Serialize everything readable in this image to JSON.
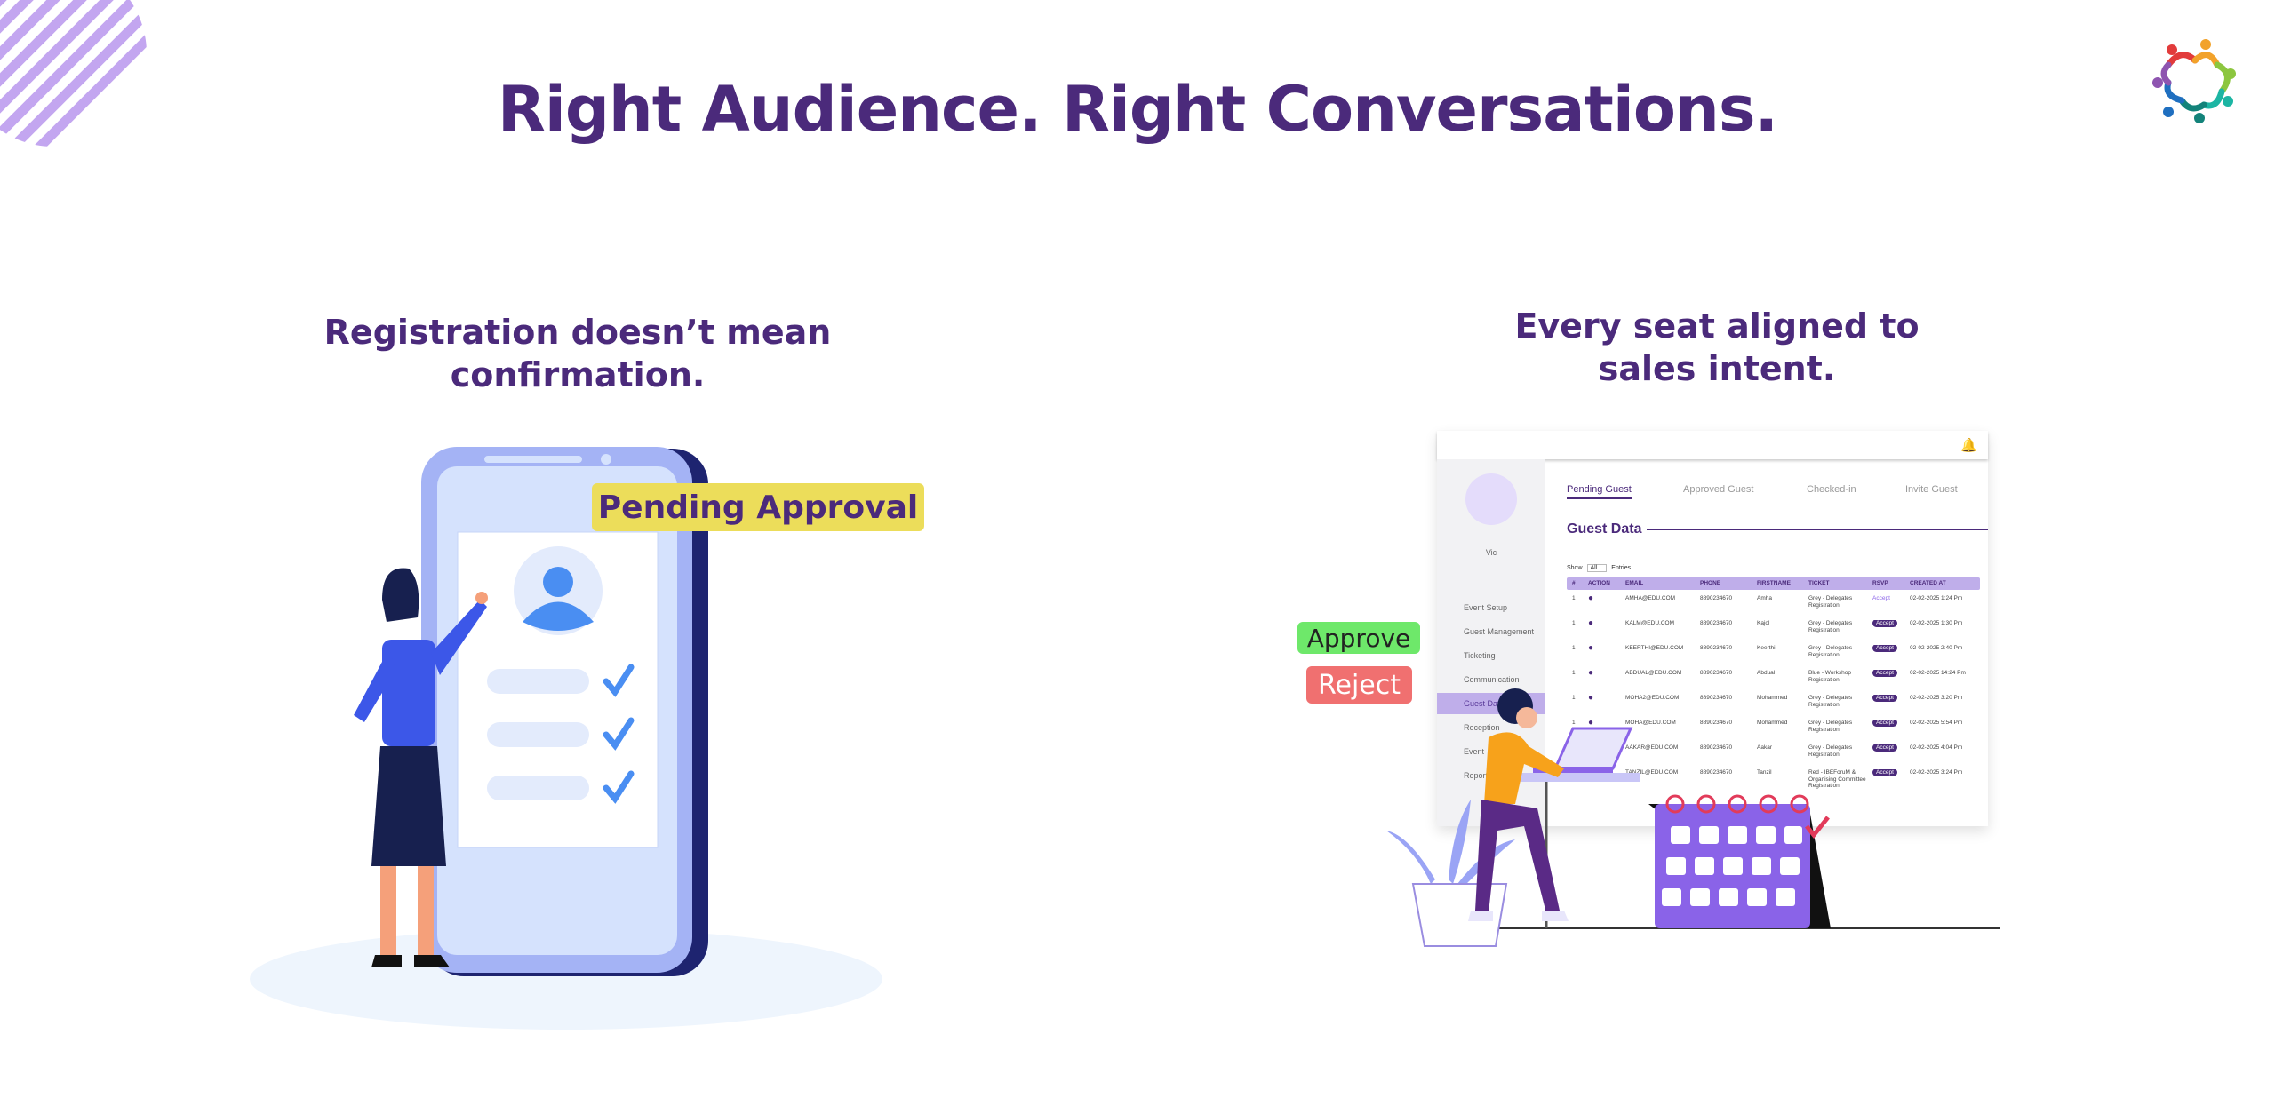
{
  "title": "Right Audience. Right Conversations.",
  "left": {
    "heading_line1": "Registration doesn’t mean",
    "heading_line2": "confirmation.",
    "status_label": "Pending Approval"
  },
  "right": {
    "heading_line1": "Every seat aligned to",
    "heading_line2": "sales intent.",
    "approve_label": "Approve",
    "reject_label": "Reject"
  },
  "dashboard": {
    "user_name": "Vic",
    "sidebar": [
      "Event Setup",
      "Guest Management",
      "Ticketing",
      "Communication",
      "Guest Data",
      "Reception",
      "Event",
      "Reports"
    ],
    "active_sidebar": "Guest Data",
    "tabs": [
      "Pending Guest",
      "Approved Guest",
      "Checked-in",
      "Invite Guest"
    ],
    "section_title": "Guest Data",
    "show_label": "Show",
    "show_value": "All",
    "entries_label": "Entries",
    "columns": [
      "#",
      "ACTION",
      "EMAIL",
      "PHONE",
      "FIRSTNAME",
      "TICKET",
      "RSVP",
      "CREATED AT"
    ],
    "rows": [
      [
        "1",
        "",
        "AMHA@EDU.COM",
        "8890234670",
        "Amha",
        "Grey - Delegates Registration",
        "Accept",
        "02-02-2025 1:24 Pm"
      ],
      [
        "1",
        "",
        "KALM@EDU.COM",
        "8890234670",
        "Kajol",
        "Grey - Delegates Registration",
        "Accept",
        "02-02-2025 1:30 Pm"
      ],
      [
        "1",
        "",
        "KEERTHI@EDU.COM",
        "8890234670",
        "Keerthi",
        "Grey - Delegates Registration",
        "Accept",
        "02-02-2025 2:40 Pm"
      ],
      [
        "1",
        "",
        "ABDUAL@EDU.COM",
        "8890234670",
        "Abdual",
        "Blue - Workshop Registration",
        "Accept",
        "02-02-2025 14:24 Pm"
      ],
      [
        "1",
        "",
        "MOHA2@EDU.COM",
        "8890234670",
        "Mohammed",
        "Grey - Delegates Registration",
        "Accept",
        "02-02-2025 3:20 Pm"
      ],
      [
        "1",
        "",
        "MOHA@EDU.COM",
        "8890234670",
        "Mohammed",
        "Grey - Delegates Registration",
        "Accept",
        "02-02-2025 5:54 Pm"
      ],
      [
        "1",
        "",
        "AAKAR@EDU.COM",
        "8890234670",
        "Aakar",
        "Grey - Delegates Registration",
        "Accept",
        "02-02-2025 4:04 Pm"
      ],
      [
        "1",
        "",
        "TANZIL@EDU.COM",
        "8890234670",
        "Tanzil",
        "Red - IBEForuM & Organising Committee Registration",
        "Accept",
        "02-02-2025 3:24 Pm"
      ]
    ]
  },
  "colors": {
    "primary": "#4b2a7b",
    "lavender": "#bfaeea",
    "approve": "#6ee86a",
    "reject": "#f07070",
    "pending": "#ecdd5a",
    "calendar": "#8a63e8"
  }
}
